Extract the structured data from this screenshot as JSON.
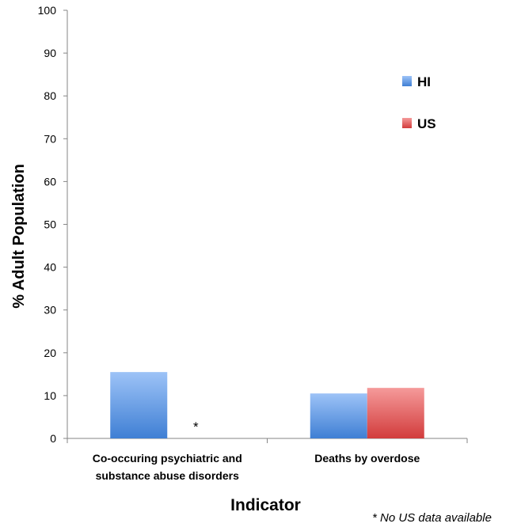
{
  "chart_data": {
    "type": "bar",
    "title": "",
    "xlabel": "Indicator",
    "ylabel": "% Adult Population",
    "ylim": [
      0,
      100
    ],
    "yticks": [
      0,
      10,
      20,
      30,
      40,
      50,
      60,
      70,
      80,
      90,
      100
    ],
    "categories": [
      [
        "Co-occuring psychiatric and",
        "substance abuse disorders"
      ],
      [
        "Deaths by overdose"
      ]
    ],
    "series": [
      {
        "name": "HI",
        "values": [
          15.5,
          10.5
        ],
        "color": "#4a86d6"
      },
      {
        "name": "US",
        "values": [
          null,
          11.8
        ],
        "color": "#d84a4a"
      }
    ],
    "missing_marker": "*",
    "legend": {
      "position": "top-right",
      "entries": [
        "HI",
        "US"
      ]
    },
    "grid": false
  },
  "footnote": "* No US data available"
}
